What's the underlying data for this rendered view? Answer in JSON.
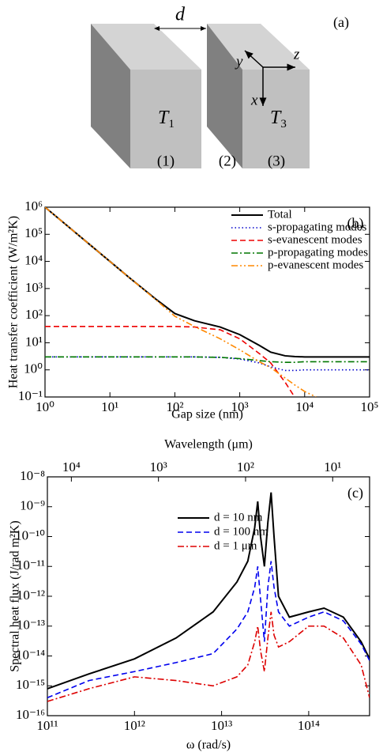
{
  "diagram": {
    "gap_label": "d",
    "panel_label": "(a)",
    "axes": {
      "y": "y",
      "z": "z",
      "x": "x"
    },
    "temperatures": [
      {
        "main": "T",
        "sub": "1"
      },
      {
        "main": "T",
        "sub": "3"
      }
    ],
    "regions": [
      "(1)",
      "(2)",
      "(3)"
    ]
  },
  "chart_data": [
    {
      "type": "line",
      "panel_label": "(b)",
      "xlabel": "Gap size (nm)",
      "ylabel": "Heat transfer coefficient (W/m²K)",
      "xscale": "log",
      "yscale": "log",
      "legend": "upper right",
      "xlim": [
        1,
        100000
      ],
      "ylim": [
        0.1,
        1000000
      ],
      "xticks": [
        {
          "value": 1,
          "label": "10⁰"
        },
        {
          "value": 10,
          "label": "10¹"
        },
        {
          "value": 100,
          "label": "10²"
        },
        {
          "value": 1000,
          "label": "10³"
        },
        {
          "value": 10000,
          "label": "10⁴"
        },
        {
          "value": 100000,
          "label": "10⁵"
        }
      ],
      "yticks": [
        {
          "value": 0.1,
          "label": "10⁻¹"
        },
        {
          "value": 1,
          "label": "10⁰"
        },
        {
          "value": 10,
          "label": "10¹"
        },
        {
          "value": 100,
          "label": "10²"
        },
        {
          "value": 1000,
          "label": "10³"
        },
        {
          "value": 10000,
          "label": "10⁴"
        },
        {
          "value": 100000,
          "label": "10⁵"
        },
        {
          "value": 1000000,
          "label": "10⁶"
        }
      ],
      "x": [
        1,
        2,
        5,
        10,
        20,
        50,
        100,
        200,
        500,
        1000,
        2000,
        3000,
        5000,
        7000,
        10000,
        15000,
        20000,
        50000,
        100000
      ],
      "series": [
        {
          "name": "Total",
          "color": "#000000",
          "dash": "solid",
          "values": [
            1000000,
            250000,
            40000,
            10000,
            2500,
            420,
            120,
            65,
            38,
            20,
            8,
            4.5,
            3.3,
            3.1,
            3,
            3,
            3,
            3,
            3
          ]
        },
        {
          "name": "s-propagating modes",
          "color": "#0000cc",
          "dash": "dotted",
          "values": [
            3,
            3,
            3,
            3,
            3,
            3,
            3,
            3,
            2.9,
            2.5,
            1.8,
            1.3,
            0.95,
            0.95,
            1,
            1,
            1,
            1,
            1
          ]
        },
        {
          "name": "s-evanescent modes",
          "color": "#ee0000",
          "dash": "dashed",
          "values": [
            40,
            40,
            40,
            40,
            40,
            40,
            40,
            38,
            30,
            14,
            4,
            1.8,
            0.35,
            0.1,
            null,
            null,
            null,
            null,
            null
          ]
        },
        {
          "name": "p-propagating modes",
          "color": "#007700",
          "dash": "dashdot",
          "values": [
            3,
            3,
            3,
            3,
            3,
            3,
            3,
            3,
            2.9,
            2.6,
            2.2,
            2,
            1.9,
            1.9,
            2,
            2,
            2,
            2,
            2
          ]
        },
        {
          "name": "p-evanescent modes",
          "color": "#ff8800",
          "dash": "dashdotdot",
          "values": [
            1000000,
            250000,
            40000,
            10000,
            2500,
            400,
            95,
            40,
            14,
            5.5,
            2,
            1.2,
            0.5,
            0.28,
            0.16,
            0.1,
            null,
            null,
            null
          ]
        }
      ]
    },
    {
      "type": "line",
      "panel_label": "(c)",
      "xlabel": "ω (rad/s)",
      "ylabel": "Spectral heat flux (J/rad m²K)",
      "x2label": "Wavelength (μm)",
      "xscale": "log",
      "yscale": "log",
      "legend": "upper center",
      "xlim": [
        100000000000,
        500000000000000
      ],
      "ylim": [
        1e-16,
        1e-08
      ],
      "x2lim": [
        18850,
        3.77
      ],
      "xticks": [
        {
          "value": 100000000000,
          "label": "10¹¹"
        },
        {
          "value": 1000000000000,
          "label": "10¹²"
        },
        {
          "value": 10000000000000,
          "label": "10¹³"
        },
        {
          "value": 100000000000000,
          "label": "10¹⁴"
        }
      ],
      "x2ticks": [
        {
          "value": 10000,
          "label": "10⁴"
        },
        {
          "value": 1000,
          "label": "10³"
        },
        {
          "value": 100,
          "label": "10²"
        },
        {
          "value": 10,
          "label": "10¹"
        }
      ],
      "yticks": [
        {
          "value": 1e-16,
          "label": "10⁻¹⁶"
        },
        {
          "value": 1e-15,
          "label": "10⁻¹⁵"
        },
        {
          "value": 1e-14,
          "label": "10⁻¹⁴"
        },
        {
          "value": 1e-13,
          "label": "10⁻¹³"
        },
        {
          "value": 1e-12,
          "label": "10⁻¹²"
        },
        {
          "value": 1e-11,
          "label": "10⁻¹¹"
        },
        {
          "value": 1e-10,
          "label": "10⁻¹⁰"
        },
        {
          "value": 1e-09,
          "label": "10⁻⁹"
        },
        {
          "value": 1e-08,
          "label": "10⁻⁸"
        }
      ],
      "x": [
        100000000000,
        300000000000,
        1000000000000,
        3000000000000,
        8000000000000,
        15000000000000,
        20000000000000,
        24000000000000,
        26000000000000,
        28000000000000,
        31000000000000,
        34000000000000,
        37000000000000,
        40000000000000,
        45000000000000,
        60000000000000,
        100000000000000,
        150000000000000,
        250000000000000,
        400000000000000,
        500000000000000
      ],
      "series": [
        {
          "name": "d = 10 nm",
          "color": "#000000",
          "dash": "solid",
          "values": [
            8e-16,
            2.5e-15,
            8e-15,
            4e-14,
            3e-13,
            3e-12,
            1.5e-11,
            2e-10,
            1.5e-09,
            1e-10,
            1e-11,
            3e-10,
            3e-09,
            1e-10,
            1e-12,
            2e-13,
            3e-13,
            4e-13,
            2e-13,
            3e-14,
            8e-15
          ]
        },
        {
          "name": "d = 100 nm",
          "color": "#0000ee",
          "dash": "dashed",
          "values": [
            4e-16,
            1.5e-15,
            3e-15,
            6e-15,
            1.2e-14,
            8e-14,
            3e-13,
            2e-12,
            1e-11,
            8e-13,
            3e-14,
            2e-12,
            1.5e-11,
            2e-12,
            3e-13,
            1e-13,
            2e-13,
            3e-13,
            1.5e-13,
            2.5e-14,
            7e-15
          ]
        },
        {
          "name": "d = 1 μm",
          "color": "#dd0000",
          "dash": "dashdot",
          "values": [
            3e-16,
            8e-16,
            2e-15,
            1.5e-15,
            1e-15,
            2e-15,
            5e-15,
            3e-14,
            1e-13,
            1.5e-14,
            3e-15,
            4e-14,
            3e-13,
            5e-14,
            2e-14,
            3e-14,
            1e-13,
            1e-13,
            4e-14,
            5e-15,
            4e-16
          ]
        }
      ]
    }
  ]
}
